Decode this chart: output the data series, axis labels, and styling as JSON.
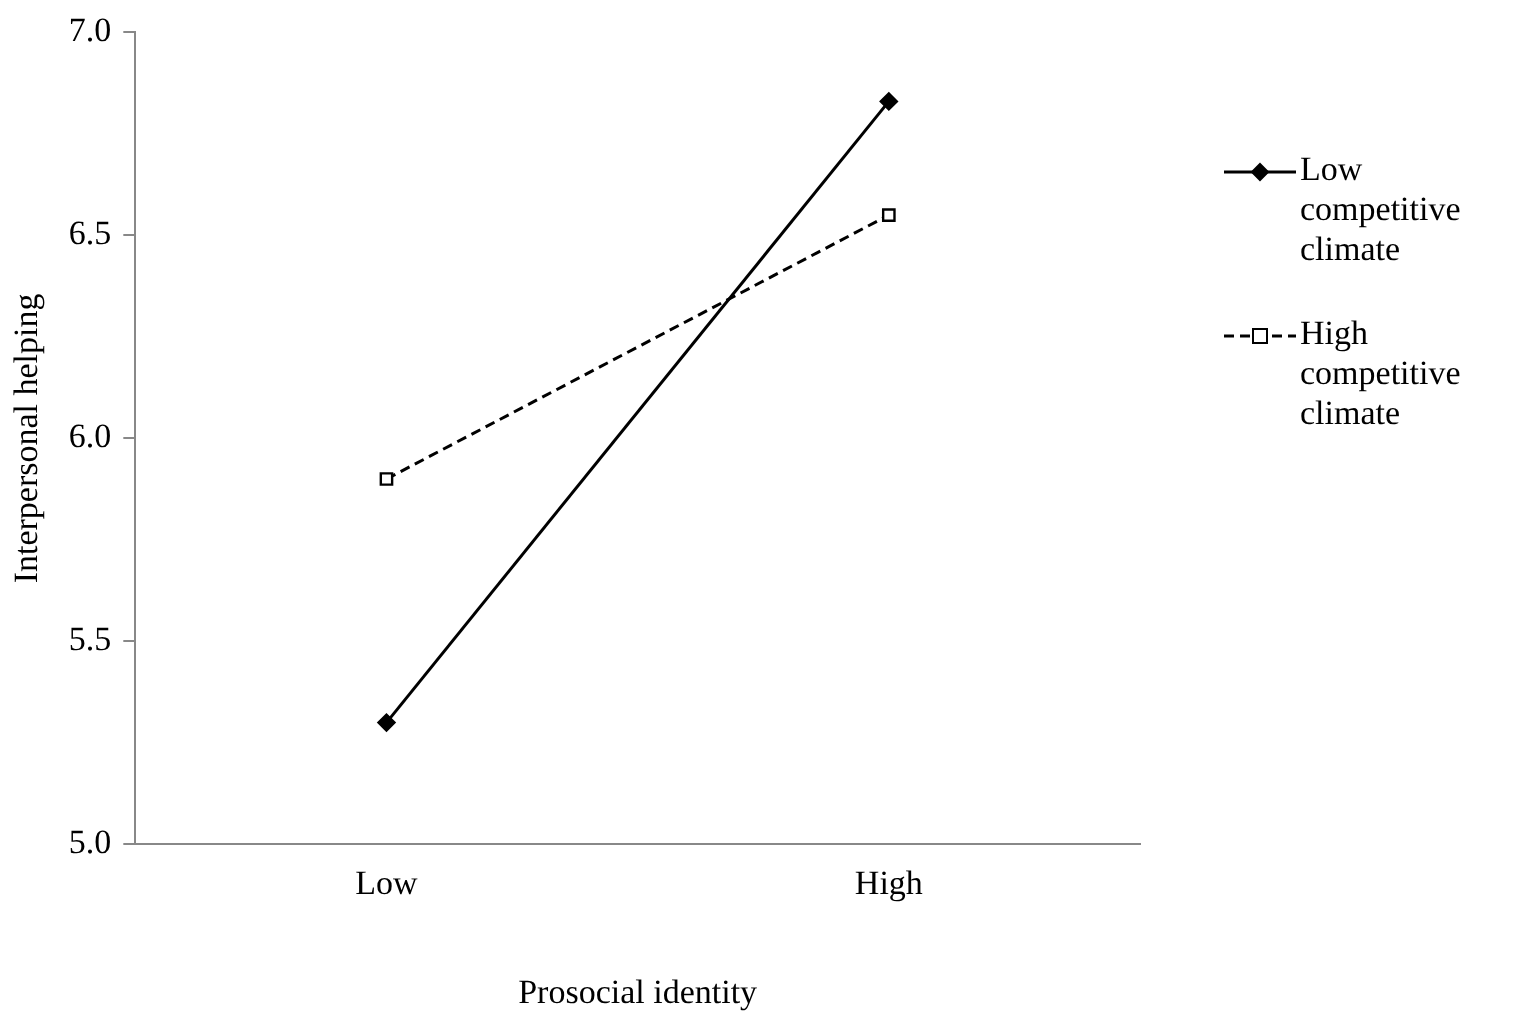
{
  "chart_data": {
    "type": "line",
    "xlabel": "Prosocial identity",
    "ylabel": "Interpersonal helping",
    "categories": [
      "Low",
      "High"
    ],
    "series": [
      {
        "name": "Low competitive climate",
        "color": "#000000",
        "values": [
          5.3,
          6.83
        ],
        "marker": "diamond",
        "line_style": "solid"
      },
      {
        "name": "High competitive climate",
        "color": "#000000",
        "values": [
          5.9,
          6.55
        ],
        "marker": "square",
        "line_style": "dashed"
      }
    ],
    "ylim": [
      5,
      7
    ],
    "yticks": [
      {
        "value": 5,
        "label": "5.0"
      },
      {
        "value": 5.5,
        "label": "5.5"
      },
      {
        "value": 6,
        "label": "6.0"
      },
      {
        "value": 6.5,
        "label": "6.5"
      },
      {
        "value": 7,
        "label": "7.0"
      }
    ],
    "grid": false,
    "legend": "right"
  }
}
